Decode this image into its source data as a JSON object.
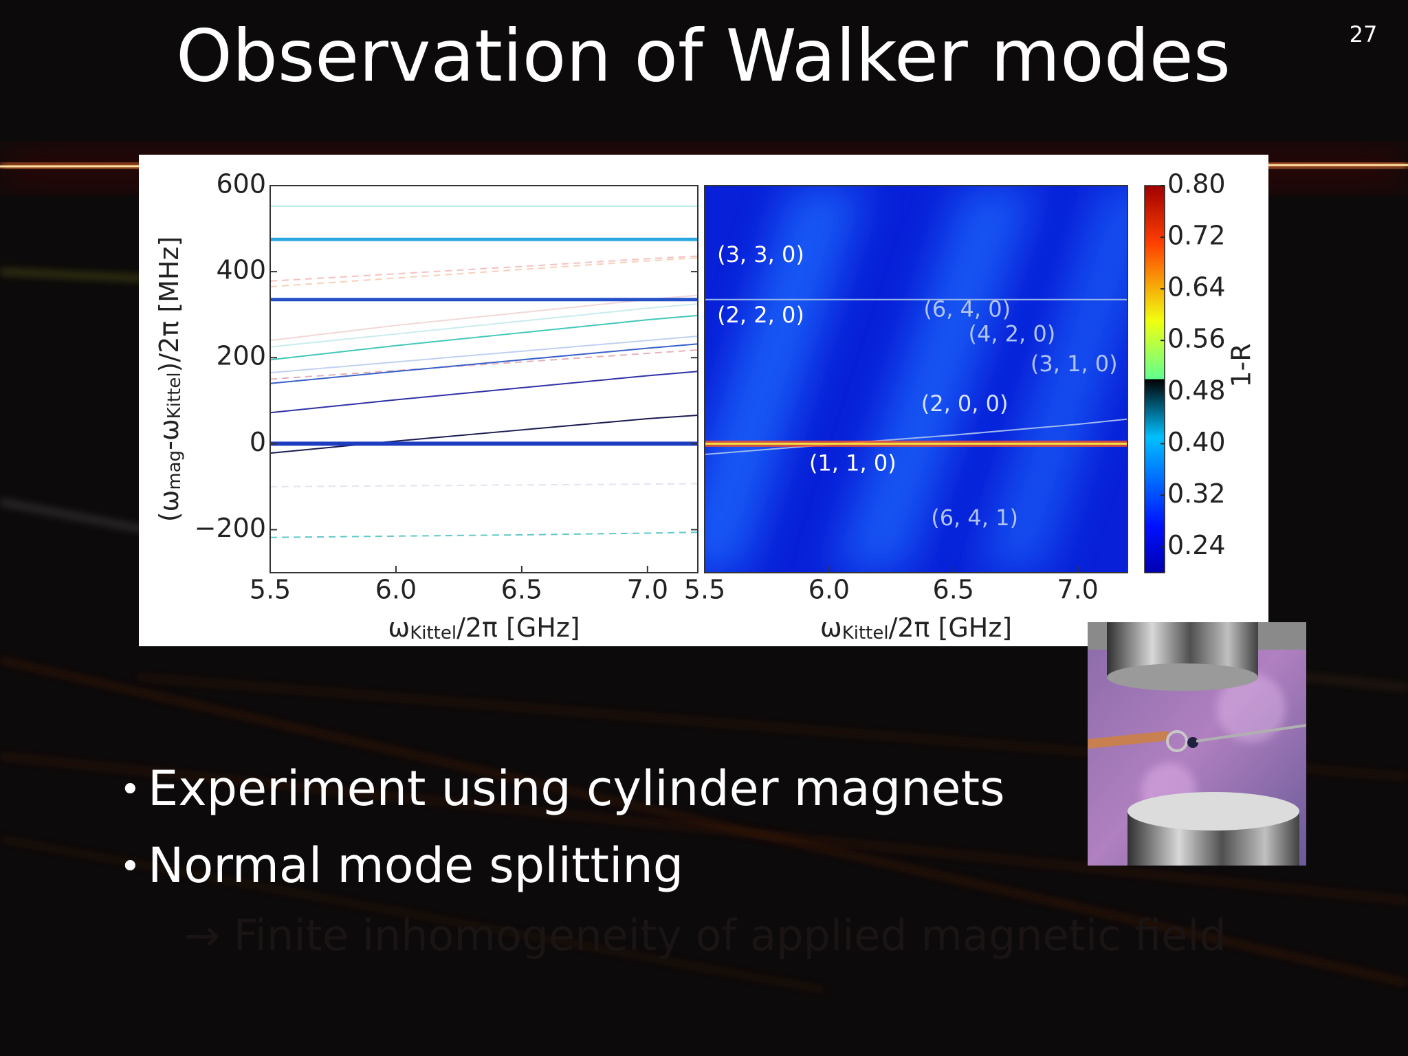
{
  "slide": {
    "title": "Observation of Walker modes",
    "page_number": "27",
    "bullets": [
      "Experiment using cylinder magnets",
      "Normal mode splitting"
    ],
    "note": "→ Finite inhomogeneity of applied magnetic field"
  },
  "chart_data": [
    {
      "type": "line",
      "x": [
        5.5,
        6.0,
        6.5,
        7.0,
        7.2
      ],
      "xlim": [
        5.5,
        7.2
      ],
      "xticks": [
        5.5,
        {
          "value": 6,
          "label": "6.0"
        },
        6.5,
        {
          "value": 7,
          "label": "7.0"
        }
      ],
      "ylim": [
        -300,
        600
      ],
      "yticks": [
        {
          "value": -200,
          "label": "−200"
        },
        0,
        200,
        400,
        600
      ],
      "xlabel": [
        "ω",
        "Kittel",
        "/2π [GHz]"
      ],
      "ylabel": [
        "(ω",
        "mag",
        "-ω",
        "Kittel",
        ")/2π [MHz]"
      ],
      "series": [
        {
          "color": "#b8ecec",
          "values": [
            552,
            552,
            552,
            552,
            552
          ],
          "linewidth": 2
        },
        {
          "color": "#f4c0c0",
          "values": [
            378,
            395,
            412,
            430,
            436
          ],
          "linewidth": 2,
          "linestyle": "dashed"
        },
        {
          "color": "#f6d0b8",
          "values": [
            365,
            385,
            405,
            425,
            432
          ],
          "linewidth": 2,
          "linestyle": "dashed"
        },
        {
          "color": "#f2d8d8",
          "values": [
            240,
            275,
            305,
            335,
            345
          ],
          "linewidth": 2
        },
        {
          "color": "#c8ecf0",
          "values": [
            225,
            255,
            285,
            315,
            325
          ],
          "linewidth": 2
        },
        {
          "color": "#40c8b8",
          "values": [
            195,
            228,
            258,
            288,
            298
          ],
          "linewidth": 2
        },
        {
          "color": "#c0d0f4",
          "values": [
            165,
            190,
            215,
            240,
            250
          ],
          "linewidth": 2
        },
        {
          "color": "#e4b0b8",
          "values": [
            150,
            170,
            190,
            210,
            218
          ],
          "linewidth": 2,
          "linestyle": "dashed"
        },
        {
          "color": "#3a60c8",
          "values": [
            140,
            168,
            195,
            222,
            232
          ],
          "linewidth": 2
        },
        {
          "color": "#3030a8",
          "values": [
            72,
            102,
            130,
            158,
            168
          ],
          "linewidth": 2
        },
        {
          "color": "#1a1a50",
          "values": [
            -22,
            6,
            32,
            58,
            66
          ],
          "linewidth": 2
        },
        {
          "color": "#e8e0f0",
          "values": [
            -100,
            -98,
            -96,
            -94,
            -93
          ],
          "linewidth": 2,
          "linestyle": "dashed"
        },
        {
          "color": "#60c8c8",
          "values": [
            -218,
            -215,
            -212,
            -208,
            -206
          ],
          "linewidth": 2,
          "linestyle": "dashed"
        },
        {
          "color": "#2ca8e0",
          "values": [
            475,
            475,
            475,
            475,
            475
          ],
          "linewidth": 5
        },
        {
          "color": "#2350c8",
          "values": [
            335,
            335,
            335,
            335,
            335
          ],
          "linewidth": 5
        },
        {
          "color": "#1d3cc0",
          "values": [
            0,
            0,
            0,
            0,
            0
          ],
          "linewidth": 6
        }
      ]
    },
    {
      "type": "heatmap",
      "x": [
        5.5,
        6.0,
        6.5,
        7.0,
        7.2
      ],
      "xlim": [
        5.5,
        7.2
      ],
      "xticks": [
        5.5,
        {
          "value": 6,
          "label": "6.0"
        },
        6.5,
        {
          "value": 7,
          "label": "7.0"
        }
      ],
      "ylim": [
        -300,
        600
      ],
      "xlabel": [
        "ω",
        "Kittel",
        "/2π [GHz]"
      ],
      "series": [
        {
          "color": "#9ab8e8",
          "values": [
            335,
            335,
            335,
            335,
            335
          ],
          "linewidth": 2
        },
        {
          "color": "#a0b8f0",
          "values": [
            -25,
            -2,
            20,
            45,
            57
          ],
          "linewidth": 2
        },
        {
          "color": "#f0e040",
          "values": [
            0,
            0,
            0,
            0,
            0
          ],
          "linewidth": 5
        }
      ],
      "annotations": [
        {
          "text": "(3, 3, 0)",
          "x": 5.55,
          "y": 437,
          "color": "#ffffff"
        },
        {
          "text": "(2, 2, 0)",
          "x": 5.55,
          "y": 296,
          "color": "#ffffff"
        },
        {
          "text": "(6, 4, 0)",
          "x": 6.38,
          "y": 310,
          "color": "#b0c4f0"
        },
        {
          "text": "(4, 2, 0)",
          "x": 6.56,
          "y": 252,
          "color": "#b0c4f0"
        },
        {
          "text": "(3, 1, 0)",
          "x": 6.81,
          "y": 183,
          "color": "#b0c4f0"
        },
        {
          "text": "(2, 0, 0)",
          "x": 6.37,
          "y": 90,
          "color": "#d8e4ff"
        },
        {
          "text": "(1, 1, 0)",
          "x": 5.92,
          "y": -48,
          "color": "#ffffff"
        },
        {
          "text": "(6, 4, 1)",
          "x": 6.41,
          "y": -175,
          "color": "#b0c4f0"
        }
      ],
      "colorbar": {
        "clim": [
          0.2,
          0.8
        ],
        "cmap": "jet",
        "label": "1-R",
        "cticks": [
          {
            "value": 0.8,
            "label": "0.80"
          },
          0.72,
          0.64,
          0.56,
          0.48,
          {
            "value": 0.4,
            "label": "0.40"
          },
          0.32,
          0.24
        ]
      }
    }
  ]
}
